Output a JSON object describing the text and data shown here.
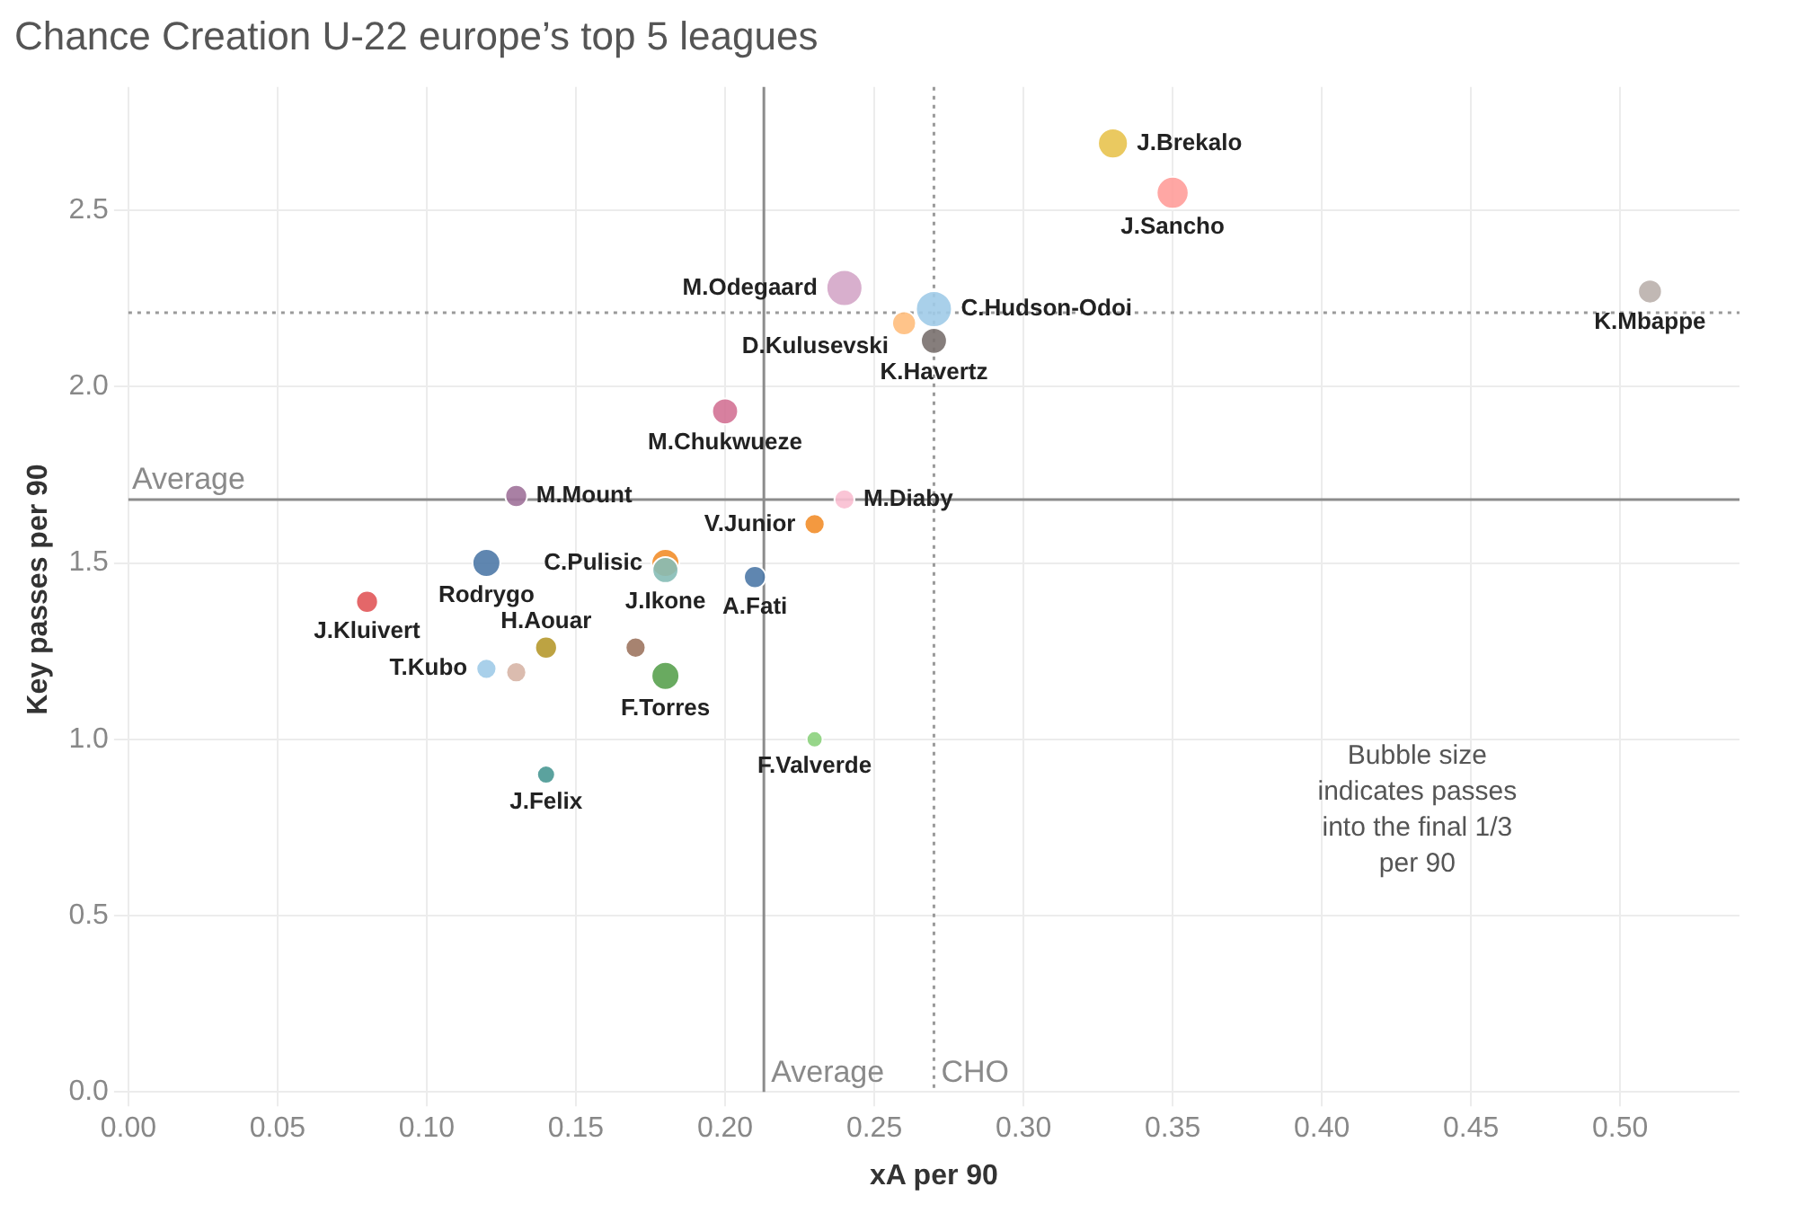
{
  "chart_data": {
    "type": "bubble",
    "title": "Chance Creation U-22 europe’s top 5 leagues",
    "xlabel": "xA per 90",
    "ylabel": "Key passes per 90",
    "xlim": [
      0,
      0.54
    ],
    "ylim": [
      0,
      2.85
    ],
    "xticks": [
      {
        "value": 0,
        "label": "0.00"
      },
      {
        "value": 0.05,
        "label": "0.05"
      },
      {
        "value": 0.1,
        "label": "0.10"
      },
      {
        "value": 0.15,
        "label": "0.15"
      },
      {
        "value": 0.2,
        "label": "0.20"
      },
      {
        "value": 0.25,
        "label": "0.25"
      },
      {
        "value": 0.3,
        "label": "0.30"
      },
      {
        "value": 0.35,
        "label": "0.35"
      },
      {
        "value": 0.4,
        "label": "0.40"
      },
      {
        "value": 0.45,
        "label": "0.45"
      },
      {
        "value": 0.5,
        "label": "0.50"
      }
    ],
    "yticks": [
      {
        "value": 0,
        "label": "0.0"
      },
      {
        "value": 0.5,
        "label": "0.5"
      },
      {
        "value": 1,
        "label": "1.0"
      },
      {
        "value": 1.5,
        "label": "1.5"
      },
      {
        "value": 2,
        "label": "2.0"
      },
      {
        "value": 2.5,
        "label": "2.5"
      }
    ],
    "grid": true,
    "legend": false,
    "marker": "circle",
    "series": [
      {
        "name": "J.Brekalo",
        "color": "#e8c34f",
        "x": [
          0.33
        ],
        "values": [
          2.69
        ],
        "sizes": [
          0.69
        ]
      },
      {
        "name": "J.Sancho",
        "color": "#ff9d9a",
        "x": [
          0.35
        ],
        "values": [
          2.55
        ],
        "sizes": [
          0.79
        ]
      },
      {
        "name": "M.Odegaard",
        "color": "#d4a6c8",
        "x": [
          0.24
        ],
        "values": [
          2.28
        ],
        "sizes": [
          1
        ]
      },
      {
        "name": "C.Hudson-Odoi",
        "color": "#a0cbe8",
        "x": [
          0.27
        ],
        "values": [
          2.22
        ],
        "sizes": [
          1
        ]
      },
      {
        "name": "D.Kulusevski",
        "color": "#ffbe7d",
        "x": [
          0.26
        ],
        "values": [
          2.18
        ],
        "sizes": [
          0.44
        ]
      },
      {
        "name": "K.Havertz",
        "color": "#79706e",
        "x": [
          0.27
        ],
        "values": [
          2.13
        ],
        "sizes": [
          0.52
        ]
      },
      {
        "name": "K.Mbappe",
        "color": "#bab0ac",
        "x": [
          0.51
        ],
        "values": [
          2.27
        ],
        "sizes": [
          0.44
        ]
      },
      {
        "name": "M.Chukwueze",
        "color": "#d37295",
        "x": [
          0.2
        ],
        "values": [
          1.93
        ],
        "sizes": [
          0.52
        ]
      },
      {
        "name": "M.Mount",
        "color": "#a0729a",
        "x": [
          0.13
        ],
        "values": [
          1.69
        ],
        "sizes": [
          0.37
        ]
      },
      {
        "name": "M.Diaby",
        "color": "#fabfd2",
        "x": [
          0.24
        ],
        "values": [
          1.68
        ],
        "sizes": [
          0.31
        ]
      },
      {
        "name": "V.Junior",
        "color": "#f28e2b",
        "x": [
          0.23
        ],
        "values": [
          1.61
        ],
        "sizes": [
          0.31
        ]
      },
      {
        "name": "Rodrygo",
        "color": "#4e79a7",
        "x": [
          0.12
        ],
        "values": [
          1.5
        ],
        "sizes": [
          0.6
        ]
      },
      {
        "name": "J.Ikone",
        "color": "#86bcb6",
        "x": [
          0.18
        ],
        "values": [
          1.48
        ],
        "sizes": [
          0.52
        ]
      },
      {
        "name": "C.Pulisic",
        "color": "#f28e2b",
        "x": [
          0.18
        ],
        "values": [
          1.5
        ],
        "sizes": [
          0.6
        ]
      },
      {
        "name": "A.Fati",
        "color": "#4e79a7",
        "x": [
          0.21
        ],
        "values": [
          1.46
        ],
        "sizes": [
          0.37
        ]
      },
      {
        "name": "J.Kluivert",
        "color": "#e15759",
        "x": [
          0.08
        ],
        "values": [
          1.39
        ],
        "sizes": [
          0.37
        ]
      },
      {
        "name": "H.Aouar",
        "color": "#b6992d",
        "x": [
          0.14
        ],
        "values": [
          1.26
        ],
        "sizes": [
          0.37
        ]
      },
      {
        "color": "#9d7660",
        "x": [
          0.17
        ],
        "values": [
          1.26
        ],
        "sizes": [
          0.31
        ]
      },
      {
        "name": "T.Kubo",
        "color": "#a0cbe8",
        "x": [
          0.12
        ],
        "values": [
          1.2
        ],
        "sizes": [
          0.31
        ]
      },
      {
        "color": "#d7b5a6",
        "x": [
          0.13
        ],
        "values": [
          1.19
        ],
        "sizes": [
          0.31
        ]
      },
      {
        "name": "F.Torres",
        "color": "#59a14f",
        "x": [
          0.18
        ],
        "values": [
          1.18
        ],
        "sizes": [
          0.6
        ]
      },
      {
        "name": "F.Valverde",
        "color": "#8cd17d",
        "x": [
          0.23
        ],
        "values": [
          1.0
        ],
        "sizes": [
          0.2
        ]
      },
      {
        "name": "J.Felix",
        "color": "#499894",
        "x": [
          0.14
        ],
        "values": [
          0.9
        ],
        "sizes": [
          0.25
        ]
      }
    ],
    "ref_lines": [
      {
        "axis": "y",
        "value": 1.68,
        "label": "Average",
        "color": "#8c8c8c",
        "line_style": "solid"
      },
      {
        "axis": "x",
        "value": 0.213,
        "label": "Average",
        "color": "#8c8c8c",
        "line_style": "solid"
      },
      {
        "axis": "x",
        "value": 0.27,
        "label": "CHO",
        "color": "#9a9a9a",
        "line_style": "dotted"
      },
      {
        "axis": "y",
        "value": 2.21,
        "color": "#9a9a9a",
        "line_style": "dotted"
      }
    ],
    "annotations": [
      "Bubble size indicates passes into the final 1/3 per 90"
    ]
  }
}
